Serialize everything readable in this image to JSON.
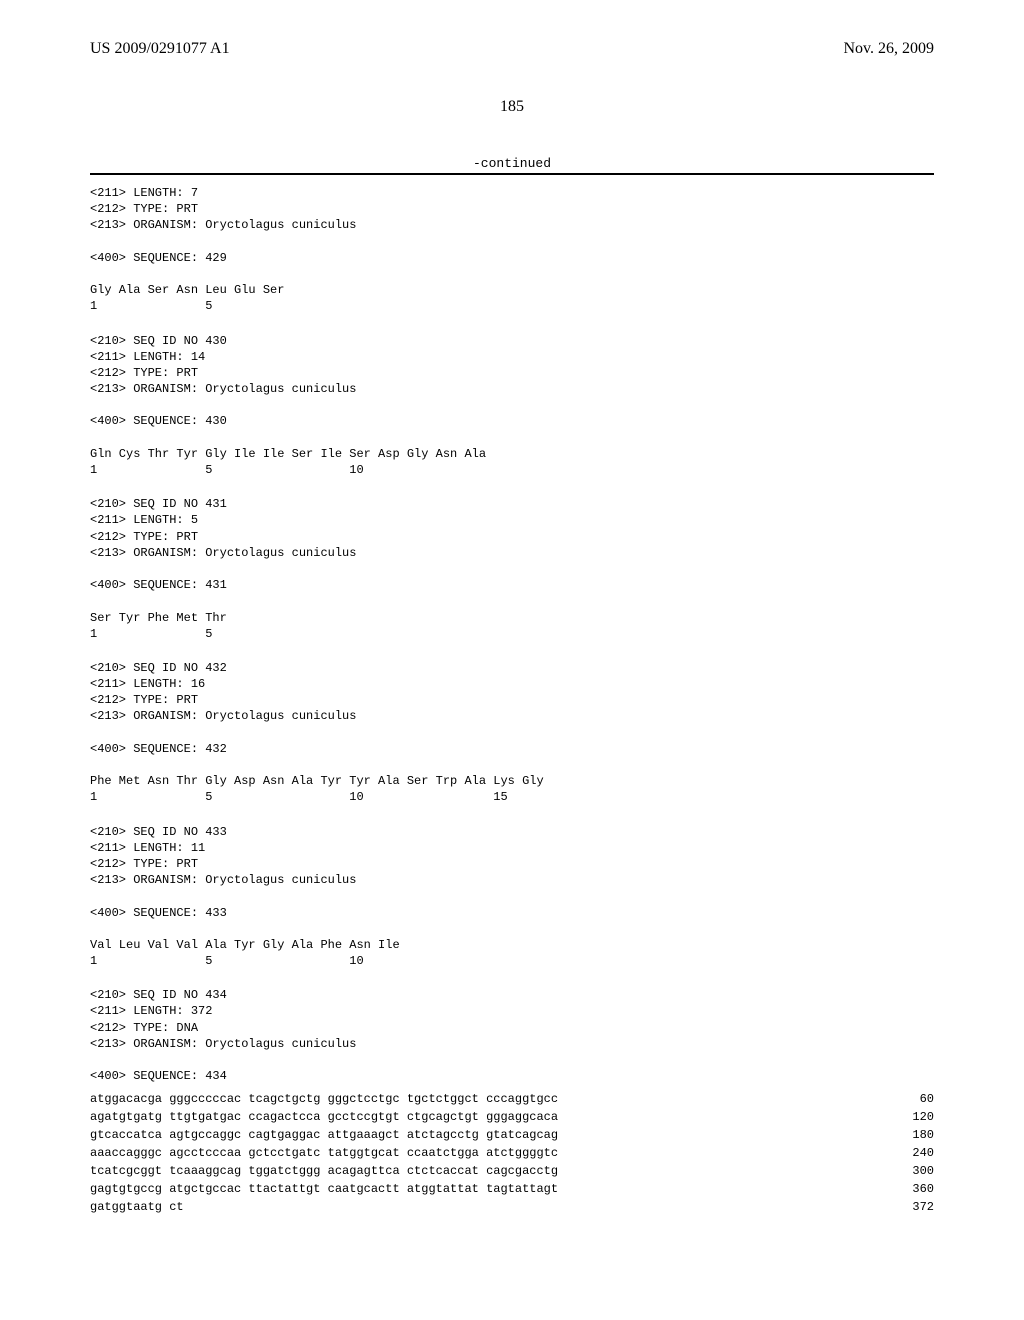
{
  "header": {
    "left": "US 2009/0291077 A1",
    "right": "Nov. 26, 2009"
  },
  "page_number": "185",
  "continued_label": "-continued",
  "entries": [
    {
      "lines": [
        "<211> LENGTH: 7",
        "<212> TYPE: PRT",
        "<213> ORGANISM: Oryctolagus cuniculus",
        "",
        "<400> SEQUENCE: 429",
        "",
        "Gly Ala Ser Asn Leu Glu Ser",
        "1               5"
      ]
    },
    {
      "lines": [
        "<210> SEQ ID NO 430",
        "<211> LENGTH: 14",
        "<212> TYPE: PRT",
        "<213> ORGANISM: Oryctolagus cuniculus",
        "",
        "<400> SEQUENCE: 430",
        "",
        "Gln Cys Thr Tyr Gly Ile Ile Ser Ile Ser Asp Gly Asn Ala",
        "1               5                   10"
      ]
    },
    {
      "lines": [
        "<210> SEQ ID NO 431",
        "<211> LENGTH: 5",
        "<212> TYPE: PRT",
        "<213> ORGANISM: Oryctolagus cuniculus",
        "",
        "<400> SEQUENCE: 431",
        "",
        "Ser Tyr Phe Met Thr",
        "1               5"
      ]
    },
    {
      "lines": [
        "<210> SEQ ID NO 432",
        "<211> LENGTH: 16",
        "<212> TYPE: PRT",
        "<213> ORGANISM: Oryctolagus cuniculus",
        "",
        "<400> SEQUENCE: 432",
        "",
        "Phe Met Asn Thr Gly Asp Asn Ala Tyr Tyr Ala Ser Trp Ala Lys Gly",
        "1               5                   10                  15"
      ]
    },
    {
      "lines": [
        "<210> SEQ ID NO 433",
        "<211> LENGTH: 11",
        "<212> TYPE: PRT",
        "<213> ORGANISM: Oryctolagus cuniculus",
        "",
        "<400> SEQUENCE: 433",
        "",
        "Val Leu Val Val Ala Tyr Gly Ala Phe Asn Ile",
        "1               5                   10"
      ]
    },
    {
      "lines": [
        "<210> SEQ ID NO 434",
        "<211> LENGTH: 372",
        "<212> TYPE: DNA",
        "<213> ORGANISM: Oryctolagus cuniculus",
        "",
        "<400> SEQUENCE: 434"
      ],
      "dna": [
        {
          "seq": "atggacacga gggcccccac tcagctgctg gggctcctgc tgctctggct cccaggtgcc",
          "num": "60"
        },
        {
          "seq": "agatgtgatg ttgtgatgac ccagactcca gcctccgtgt ctgcagctgt gggaggcaca",
          "num": "120"
        },
        {
          "seq": "gtcaccatca agtgccaggc cagtgaggac attgaaagct atctagcctg gtatcagcag",
          "num": "180"
        },
        {
          "seq": "aaaccagggc agcctcccaa gctcctgatc tatggtgcat ccaatctgga atctggggtc",
          "num": "240"
        },
        {
          "seq": "tcatcgcggt tcaaaggcag tggatctggg acagagttca ctctcaccat cagcgacctg",
          "num": "300"
        },
        {
          "seq": "gagtgtgccg atgctgccac ttactattgt caatgcactt atggtattat tagtattagt",
          "num": "360"
        },
        {
          "seq": "gatggtaatg ct",
          "num": "372"
        }
      ]
    }
  ]
}
